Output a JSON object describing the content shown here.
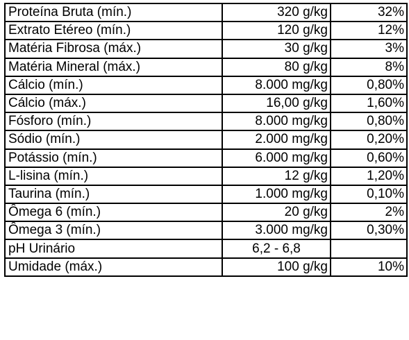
{
  "table": {
    "rows": [
      {
        "nutrient": "Proteína Bruta (mín.)",
        "amount": "320 g/kg",
        "percent": "32%"
      },
      {
        "nutrient": "Extrato Etéreo (mín.)",
        "amount": "120 g/kg",
        "percent": "12%"
      },
      {
        "nutrient": "Matéria Fibrosa (máx.)",
        "amount": "30 g/kg",
        "percent": "3%"
      },
      {
        "nutrient": "Matéria Mineral (máx.)",
        "amount": "80 g/kg",
        "percent": "8%"
      },
      {
        "nutrient": "Cálcio (mín.)",
        "amount": "8.000 mg/kg",
        "percent": "0,80%"
      },
      {
        "nutrient": "Cálcio (máx.)",
        "amount": "16,00 g/kg",
        "percent": "1,60%"
      },
      {
        "nutrient": "Fósforo (mín.)",
        "amount": "8.000 mg/kg",
        "percent": "0,80%"
      },
      {
        "nutrient": "Sódio (mín.)",
        "amount": "2.000 mg/kg",
        "percent": "0,20%"
      },
      {
        "nutrient": "Potássio (mín.)",
        "amount": "6.000 mg/kg",
        "percent": "0,60%"
      },
      {
        "nutrient": "L-lisina (mín.)",
        "amount": "12 g/kg",
        "percent": "1,20%"
      },
      {
        "nutrient": "Taurina (mín.)",
        "amount": "1.000 mg/kg",
        "percent": "0,10%"
      },
      {
        "nutrient": "Ômega 6 (mín.)",
        "amount": "20 g/kg",
        "percent": "2%"
      },
      {
        "nutrient": "Ômega 3 (mín.)",
        "amount": "3.000 mg/kg",
        "percent": "0,30%"
      },
      {
        "nutrient": "pH Urinário",
        "amount": "6,2 - 6,8",
        "percent": ""
      },
      {
        "nutrient": "Umidade (máx.)",
        "amount": "100 g/kg",
        "percent": "10%"
      }
    ]
  }
}
